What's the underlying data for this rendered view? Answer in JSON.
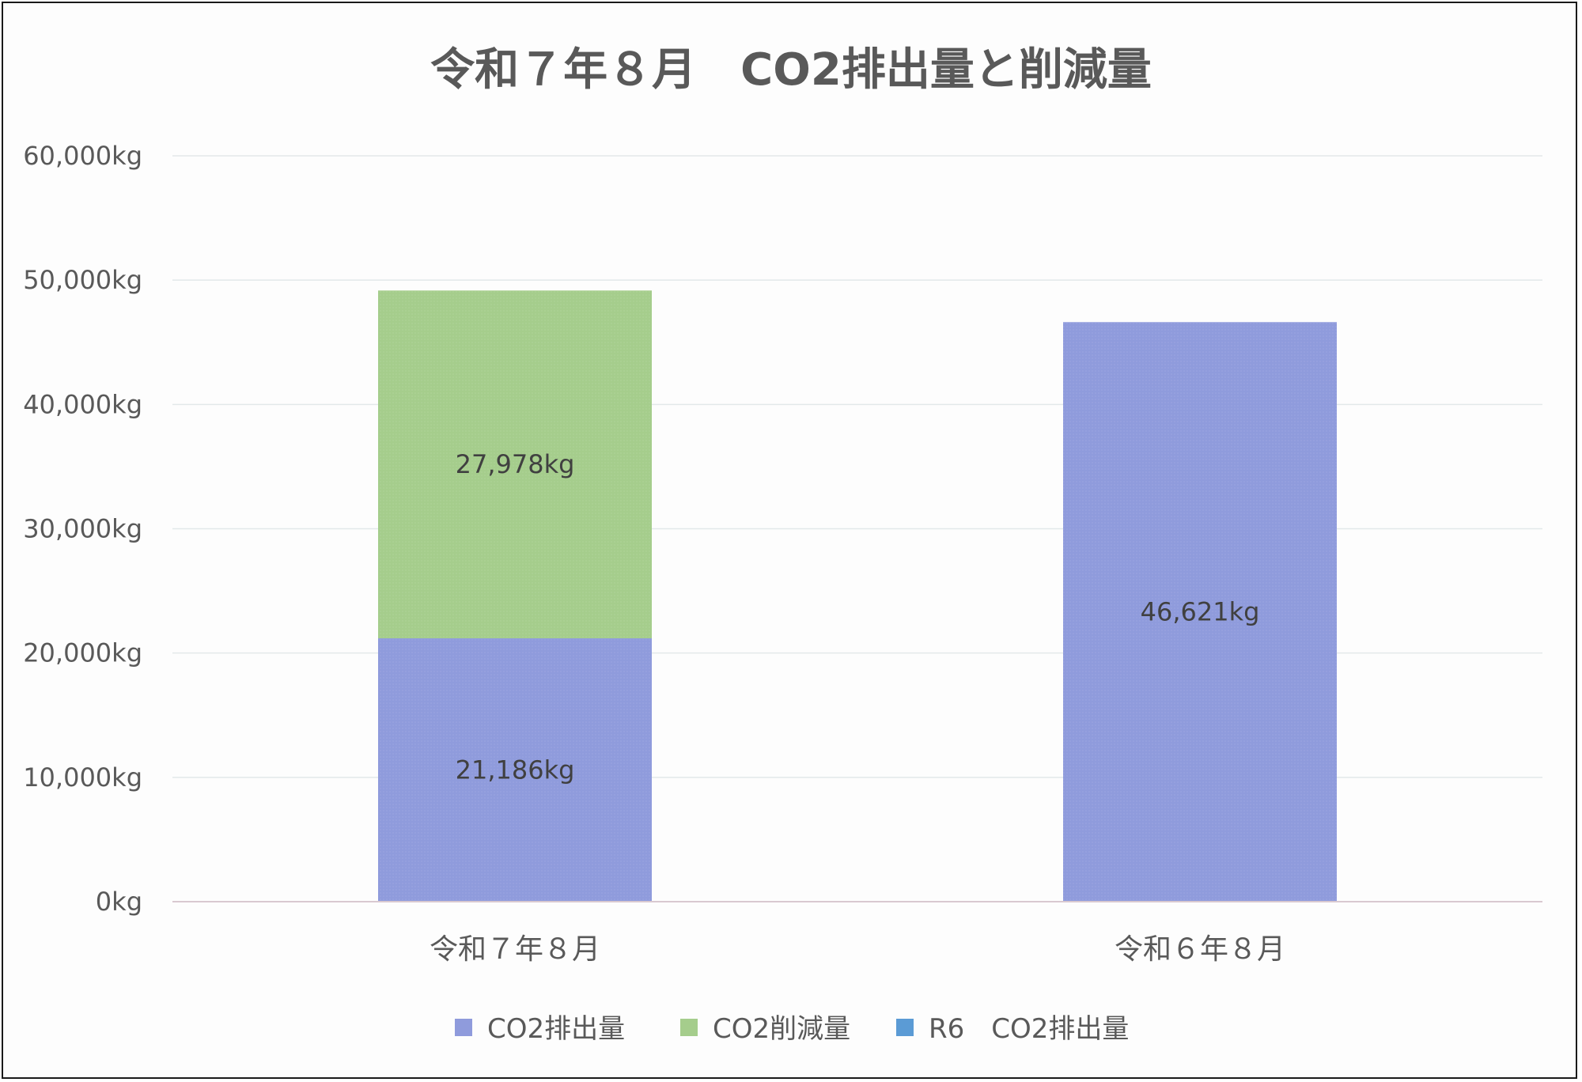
{
  "chart_data": {
    "type": "bar",
    "stacked": true,
    "title": "令和７年８月　CO2排出量と削減量",
    "xlabel": "",
    "ylabel": "",
    "categories": [
      "令和７年８月",
      "令和６年８月"
    ],
    "ylim": [
      0,
      60000
    ],
    "yticks": [
      0,
      10000,
      20000,
      30000,
      40000,
      50000,
      60000
    ],
    "ytick_labels": [
      "0kg",
      "10,000kg",
      "20,000kg",
      "30,000kg",
      "40,000kg",
      "50,000kg",
      "60,000kg"
    ],
    "grid": true,
    "legend_position": "bottom",
    "series": [
      {
        "name": "CO2排出量",
        "values": [
          21186,
          null
        ],
        "labels": [
          "21,186kg",
          ""
        ],
        "color": "#8f9bdc"
      },
      {
        "name": "CO2削減量",
        "values": [
          27978,
          null
        ],
        "labels": [
          "27,978kg",
          ""
        ],
        "color": "#a5cd8c"
      },
      {
        "name": "R6　CO2排出量",
        "values": [
          null,
          46621
        ],
        "labels": [
          "",
          "46,621kg"
        ],
        "color": "#5b9bd5",
        "bar_color": "#8f9bdc"
      }
    ]
  }
}
